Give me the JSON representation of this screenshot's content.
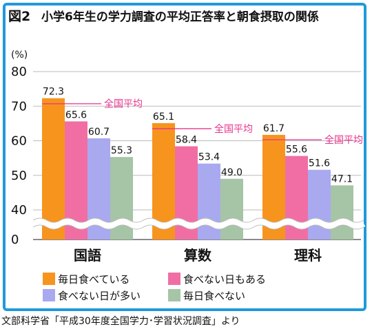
{
  "figure": {
    "label": "図2",
    "title": "小学6年生の学力調査の平均正答率と朝食摂取の関係",
    "source": "文部科学省「平成30年度全国学力･学習状況調査」より"
  },
  "chart_data": {
    "type": "bar",
    "title": "小学6年生の学力調査の平均正答率と朝食摂取の関係",
    "ylabel": "(%)",
    "yticks": [
      "80",
      "70",
      "60",
      "50",
      "40",
      "0"
    ],
    "ylim": [
      40,
      80
    ],
    "axis_break": true,
    "grid": true,
    "legend_position": "bottom",
    "categories": [
      "国語",
      "算数",
      "理科"
    ],
    "series": [
      {
        "name": "毎日食べている",
        "color": "#f7941d",
        "values": [
          72.3,
          65.1,
          61.7
        ]
      },
      {
        "name": "食べない日もある",
        "color": "#f06ea4",
        "values": [
          65.6,
          58.4,
          55.6
        ]
      },
      {
        "name": "食べない日が多い",
        "color": "#a9a9f0",
        "values": [
          60.7,
          53.4,
          51.6
        ]
      },
      {
        "name": "毎日食べない",
        "color": "#a6c4a6",
        "values": [
          55.3,
          49.0,
          47.1
        ]
      }
    ],
    "reference": {
      "label": "全国平均",
      "color": "#e8338d",
      "values": [
        70.7,
        63.5,
        60.3
      ]
    }
  }
}
